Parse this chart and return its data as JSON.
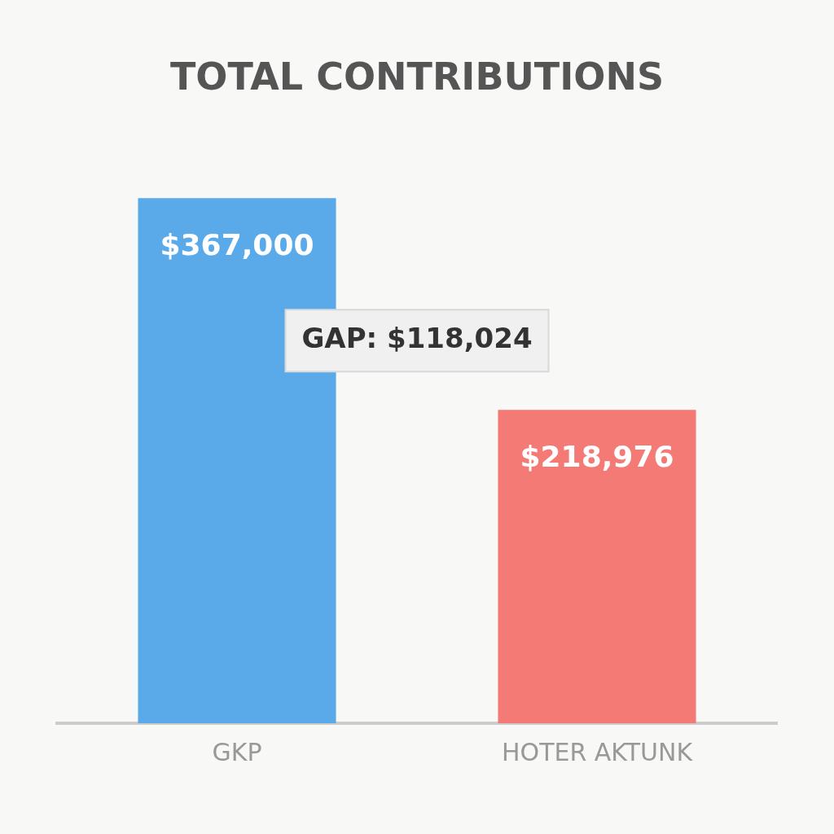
{
  "chart_data": {
    "type": "bar",
    "title": "TOTAL CONTRIBUTIONS",
    "categories": [
      "GKP",
      "HOTER AKTUNK"
    ],
    "values": [
      367000,
      218976
    ],
    "value_labels": [
      "$367,000",
      "$218,976"
    ],
    "colors": [
      "#5aaaea",
      "#f47a76"
    ],
    "annotations": [
      "GAP: $118,024"
    ],
    "grid": false,
    "legend": false
  }
}
